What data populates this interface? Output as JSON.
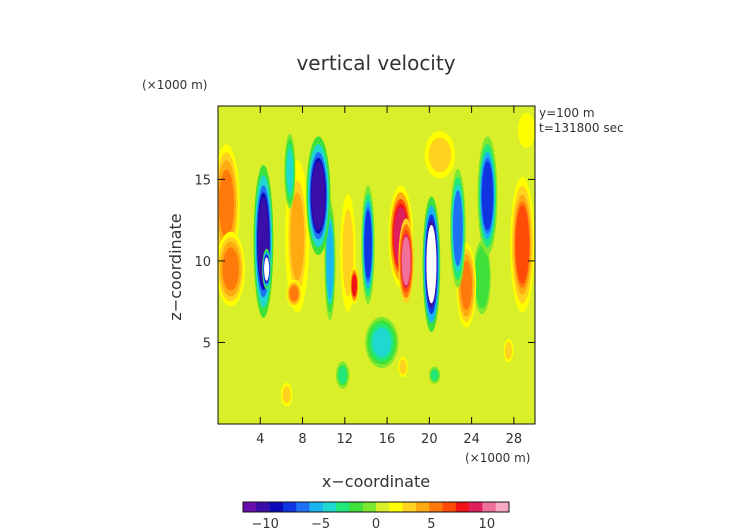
{
  "chart_data": {
    "type": "heatmap",
    "title": "vertical velocity",
    "xlabel": "x−coordinate",
    "ylabel": "z−coordinate",
    "x_unit": "(×1000 m)",
    "y_unit": "(×1000 m)",
    "xlim": [
      0,
      30
    ],
    "ylim": [
      0,
      19.5
    ],
    "x_ticks": [
      4,
      8,
      12,
      16,
      20,
      24,
      28
    ],
    "y_ticks": [
      5,
      10,
      15
    ],
    "x_tick_labels": [
      "4",
      "8",
      "12",
      "16",
      "20",
      "24",
      "28"
    ],
    "y_tick_labels": [
      "5",
      "10",
      "15"
    ],
    "annotations": [
      "y=100 m",
      "t=131800 sec"
    ],
    "colorbar": {
      "range": [
        -12,
        12
      ],
      "ticks": [
        -10,
        -5,
        0,
        5,
        10
      ],
      "tick_labels": [
        "−10",
        "−5",
        "0",
        "5",
        "10"
      ],
      "colors": [
        "#6a0dad",
        "#3a0ea8",
        "#0a0ab8",
        "#1034e0",
        "#1e70f5",
        "#19b5f0",
        "#1fd8d0",
        "#22e87a",
        "#3ee03a",
        "#7ce830",
        "#d8ef2a",
        "#ffff00",
        "#ffd21f",
        "#ffaa10",
        "#ff7a0a",
        "#ff4a08",
        "#f01018",
        "#e0205c",
        "#f0709a",
        "#f6a9c4"
      ]
    },
    "cells": [
      {
        "x": 0.8,
        "z": 13.5,
        "v": 5,
        "sx": 1.2,
        "sz": 3.5
      },
      {
        "x": 1.2,
        "z": 9.5,
        "v": 5,
        "sx": 1.3,
        "sz": 2.2
      },
      {
        "x": 3.4,
        "z": 15,
        "v": 1,
        "sx": 0.8,
        "sz": 2.2
      },
      {
        "x": 4.3,
        "z": 11.2,
        "v": -10,
        "sx": 0.9,
        "sz": 4.5
      },
      {
        "x": 4.6,
        "z": 9.5,
        "v": -12,
        "sx": 0.4,
        "sz": 1.2
      },
      {
        "x": 7.5,
        "z": 11.5,
        "v": 4,
        "sx": 1.1,
        "sz": 4.5
      },
      {
        "x": 7.2,
        "z": 8,
        "v": 5,
        "sx": 0.7,
        "sz": 0.8
      },
      {
        "x": 6.8,
        "z": 15.5,
        "v": -4,
        "sx": 0.5,
        "sz": 2.2
      },
      {
        "x": 9.5,
        "z": 14,
        "v": -10,
        "sx": 1.1,
        "sz": 3.5
      },
      {
        "x": 10.6,
        "z": 10,
        "v": -6,
        "sx": 0.5,
        "sz": 3.5
      },
      {
        "x": 12.3,
        "z": 10.5,
        "v": 3,
        "sx": 0.8,
        "sz": 4
      },
      {
        "x": 12.9,
        "z": 8.5,
        "v": 8,
        "sx": 0.4,
        "sz": 1.1
      },
      {
        "x": 14.2,
        "z": 11,
        "v": -8,
        "sx": 0.6,
        "sz": 3.5
      },
      {
        "x": 14.8,
        "z": 14.5,
        "v": 1,
        "sx": 1.2,
        "sz": 2.2
      },
      {
        "x": 17.3,
        "z": 11.5,
        "v": 9,
        "sx": 1.1,
        "sz": 3
      },
      {
        "x": 17.8,
        "z": 10,
        "v": 10,
        "sx": 0.7,
        "sz": 2.5
      },
      {
        "x": 21.0,
        "z": 16.5,
        "v": 3,
        "sx": 1.6,
        "sz": 1.6
      },
      {
        "x": 20.2,
        "z": 9.8,
        "v": -12,
        "sx": 0.8,
        "sz": 4
      },
      {
        "x": 22.7,
        "z": 12,
        "v": -7,
        "sx": 0.7,
        "sz": 3.5
      },
      {
        "x": 23.5,
        "z": 8.5,
        "v": 5,
        "sx": 0.9,
        "sz": 2.5
      },
      {
        "x": 25.5,
        "z": 14,
        "v": -8,
        "sx": 0.9,
        "sz": 3.5
      },
      {
        "x": 25.0,
        "z": 9,
        "v": -2,
        "sx": 0.9,
        "sz": 2.5
      },
      {
        "x": 28.8,
        "z": 11,
        "v": 6,
        "sx": 1.1,
        "sz": 4
      },
      {
        "x": 29.2,
        "z": 18,
        "v": 2,
        "sx": 0.9,
        "sz": 1.2
      },
      {
        "x": 15.5,
        "z": 5,
        "v": -4,
        "sx": 1.5,
        "sz": 1.5
      },
      {
        "x": 11.8,
        "z": 3,
        "v": -3,
        "sx": 0.6,
        "sz": 0.8
      },
      {
        "x": 17.5,
        "z": 3.5,
        "v": 3,
        "sx": 0.5,
        "sz": 0.7
      },
      {
        "x": 27.5,
        "z": 4.5,
        "v": 3,
        "sx": 0.5,
        "sz": 0.8
      },
      {
        "x": 6.5,
        "z": 1.8,
        "v": 3,
        "sx": 0.6,
        "sz": 0.8
      },
      {
        "x": 20.5,
        "z": 3,
        "v": -3,
        "sx": 0.5,
        "sz": 0.5
      }
    ]
  }
}
